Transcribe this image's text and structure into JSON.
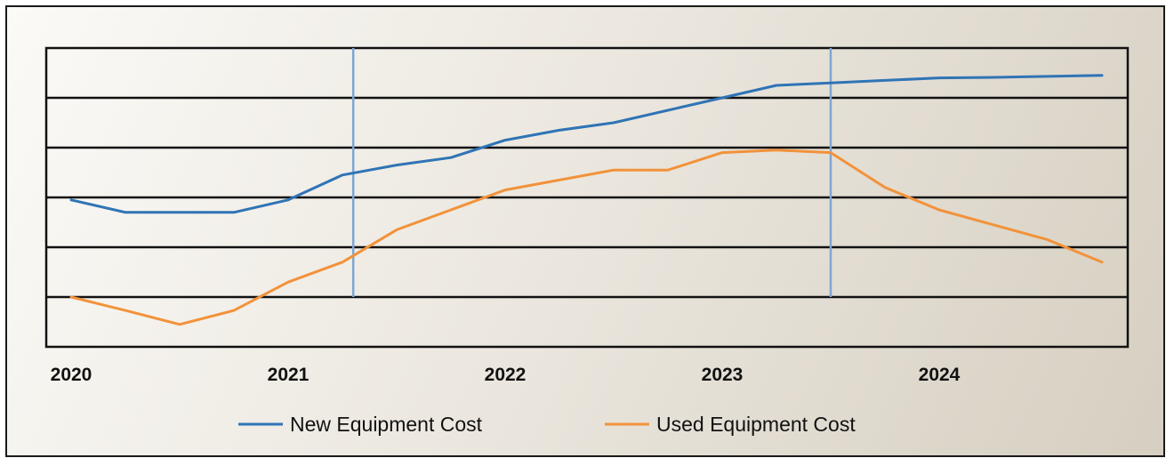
{
  "chart_data": {
    "type": "line",
    "title": "",
    "xlabel": "",
    "ylabel": "",
    "x_ticks": [
      "2020",
      "2021",
      "2022",
      "2023",
      "2024"
    ],
    "xlim": [
      2020,
      2025
    ],
    "ylim": [
      0,
      6
    ],
    "grid": true,
    "legend_position": "bottom-center",
    "series": [
      {
        "name": "New Equipment Cost",
        "color": "#2f74b5",
        "x": [
          2020.0,
          2020.25,
          2020.5,
          2020.75,
          2021.0,
          2021.25,
          2021.5,
          2021.75,
          2022.0,
          2022.25,
          2022.5,
          2022.75,
          2023.0,
          2023.25,
          2023.5,
          2023.75,
          2024.0,
          2024.25,
          2024.5,
          2024.75
        ],
        "y": [
          2.95,
          2.7,
          2.7,
          2.7,
          2.95,
          3.45,
          3.65,
          3.8,
          4.15,
          4.35,
          4.5,
          4.75,
          5.0,
          5.25,
          5.3,
          5.35,
          5.4,
          5.41,
          5.43,
          5.45
        ]
      },
      {
        "name": "Used Equipment Cost",
        "color": "#f2923a",
        "x": [
          2020.0,
          2020.25,
          2020.5,
          2020.75,
          2021.0,
          2021.25,
          2021.5,
          2021.75,
          2022.0,
          2022.25,
          2022.5,
          2022.75,
          2023.0,
          2023.25,
          2023.5,
          2023.75,
          2024.0,
          2024.25,
          2024.5,
          2024.75
        ],
        "y": [
          1.0,
          0.73,
          0.45,
          0.73,
          1.3,
          1.7,
          2.35,
          2.75,
          3.15,
          3.35,
          3.55,
          3.55,
          3.9,
          3.95,
          3.9,
          3.2,
          2.75,
          2.45,
          2.15,
          1.7
        ]
      }
    ],
    "vertical_markers": [
      2021.3,
      2023.5
    ]
  },
  "colors": {
    "grid": "#111111",
    "marker": "#7ea6d2",
    "background": "#ece8e0"
  }
}
